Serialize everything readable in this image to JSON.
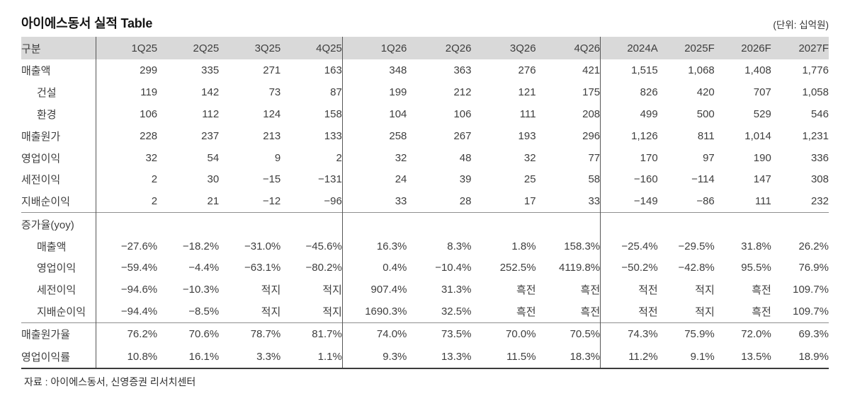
{
  "title": "아이에스동서 실적 Table",
  "unit_note": "(단위: 십억원)",
  "source": "자료 : 아이에스동서, 신영증권 리서치센터",
  "colors": {
    "header_bg": "#d9d9d9",
    "text": "#3e3e3e",
    "divider": "#565656",
    "section_line": "#8f8f8f",
    "bottom_border": "#3b3b3b"
  },
  "table": {
    "col_header": [
      "구분",
      "1Q25",
      "2Q25",
      "3Q25",
      "4Q25",
      "1Q26",
      "2Q26",
      "3Q26",
      "4Q26",
      "2024A",
      "2025F",
      "2026F",
      "2027F"
    ],
    "rows": [
      {
        "label": "매출액",
        "indent": 0,
        "divider_above": false,
        "values": [
          "299",
          "335",
          "271",
          "163",
          "348",
          "363",
          "276",
          "421",
          "1,515",
          "1,068",
          "1,408",
          "1,776"
        ]
      },
      {
        "label": "건설",
        "indent": 1,
        "divider_above": false,
        "values": [
          "119",
          "142",
          "73",
          "87",
          "199",
          "212",
          "121",
          "175",
          "826",
          "420",
          "707",
          "1,058"
        ]
      },
      {
        "label": "환경",
        "indent": 1,
        "divider_above": false,
        "values": [
          "106",
          "112",
          "124",
          "158",
          "104",
          "106",
          "111",
          "208",
          "499",
          "500",
          "529",
          "546"
        ]
      },
      {
        "label": "매출원가",
        "indent": 0,
        "divider_above": false,
        "values": [
          "228",
          "237",
          "213",
          "133",
          "258",
          "267",
          "193",
          "296",
          "1,126",
          "811",
          "1,014",
          "1,231"
        ]
      },
      {
        "label": "영업이익",
        "indent": 0,
        "divider_above": false,
        "values": [
          "32",
          "54",
          "9",
          "2",
          "32",
          "48",
          "32",
          "77",
          "170",
          "97",
          "190",
          "336"
        ]
      },
      {
        "label": "세전이익",
        "indent": 0,
        "divider_above": false,
        "values": [
          "2",
          "30",
          "−15",
          "−131",
          "24",
          "39",
          "25",
          "58",
          "−160",
          "−114",
          "147",
          "308"
        ]
      },
      {
        "label": "지배순이익",
        "indent": 0,
        "divider_above": false,
        "values": [
          "2",
          "21",
          "−12",
          "−96",
          "33",
          "28",
          "17",
          "33",
          "−149",
          "−86",
          "111",
          "232"
        ]
      },
      {
        "label": "증가율(yoy)",
        "indent": 0,
        "divider_above": true,
        "values": [
          "",
          "",
          "",
          "",
          "",
          "",
          "",
          "",
          "",
          "",
          "",
          ""
        ]
      },
      {
        "label": "매출액",
        "indent": 1,
        "divider_above": false,
        "values": [
          "−27.6%",
          "−18.2%",
          "−31.0%",
          "−45.6%",
          "16.3%",
          "8.3%",
          "1.8%",
          "158.3%",
          "−25.4%",
          "−29.5%",
          "31.8%",
          "26.2%"
        ]
      },
      {
        "label": "영업이익",
        "indent": 1,
        "divider_above": false,
        "values": [
          "−59.4%",
          "−4.4%",
          "−63.1%",
          "−80.2%",
          "0.4%",
          "−10.4%",
          "252.5%",
          "4119.8%",
          "−50.2%",
          "−42.8%",
          "95.5%",
          "76.9%"
        ]
      },
      {
        "label": "세전이익",
        "indent": 1,
        "divider_above": false,
        "values": [
          "−94.6%",
          "−10.3%",
          "적지",
          "적지",
          "907.4%",
          "31.3%",
          "흑전",
          "흑전",
          "적전",
          "적지",
          "흑전",
          "109.7%"
        ]
      },
      {
        "label": "지배순이익",
        "indent": 1,
        "divider_above": false,
        "values": [
          "−94.4%",
          "−8.5%",
          "적지",
          "적지",
          "1690.3%",
          "32.5%",
          "흑전",
          "흑전",
          "적전",
          "적지",
          "흑전",
          "109.7%"
        ]
      },
      {
        "label": "매출원가율",
        "indent": 0,
        "divider_above": true,
        "values": [
          "76.2%",
          "70.6%",
          "78.7%",
          "81.7%",
          "74.0%",
          "73.5%",
          "70.0%",
          "70.5%",
          "74.3%",
          "75.9%",
          "72.0%",
          "69.3%"
        ]
      },
      {
        "label": "영업이익률",
        "indent": 0,
        "divider_above": false,
        "values": [
          "10.8%",
          "16.1%",
          "3.3%",
          "1.1%",
          "9.3%",
          "13.3%",
          "11.5%",
          "18.3%",
          "11.2%",
          "9.1%",
          "13.5%",
          "18.9%"
        ]
      }
    ]
  }
}
